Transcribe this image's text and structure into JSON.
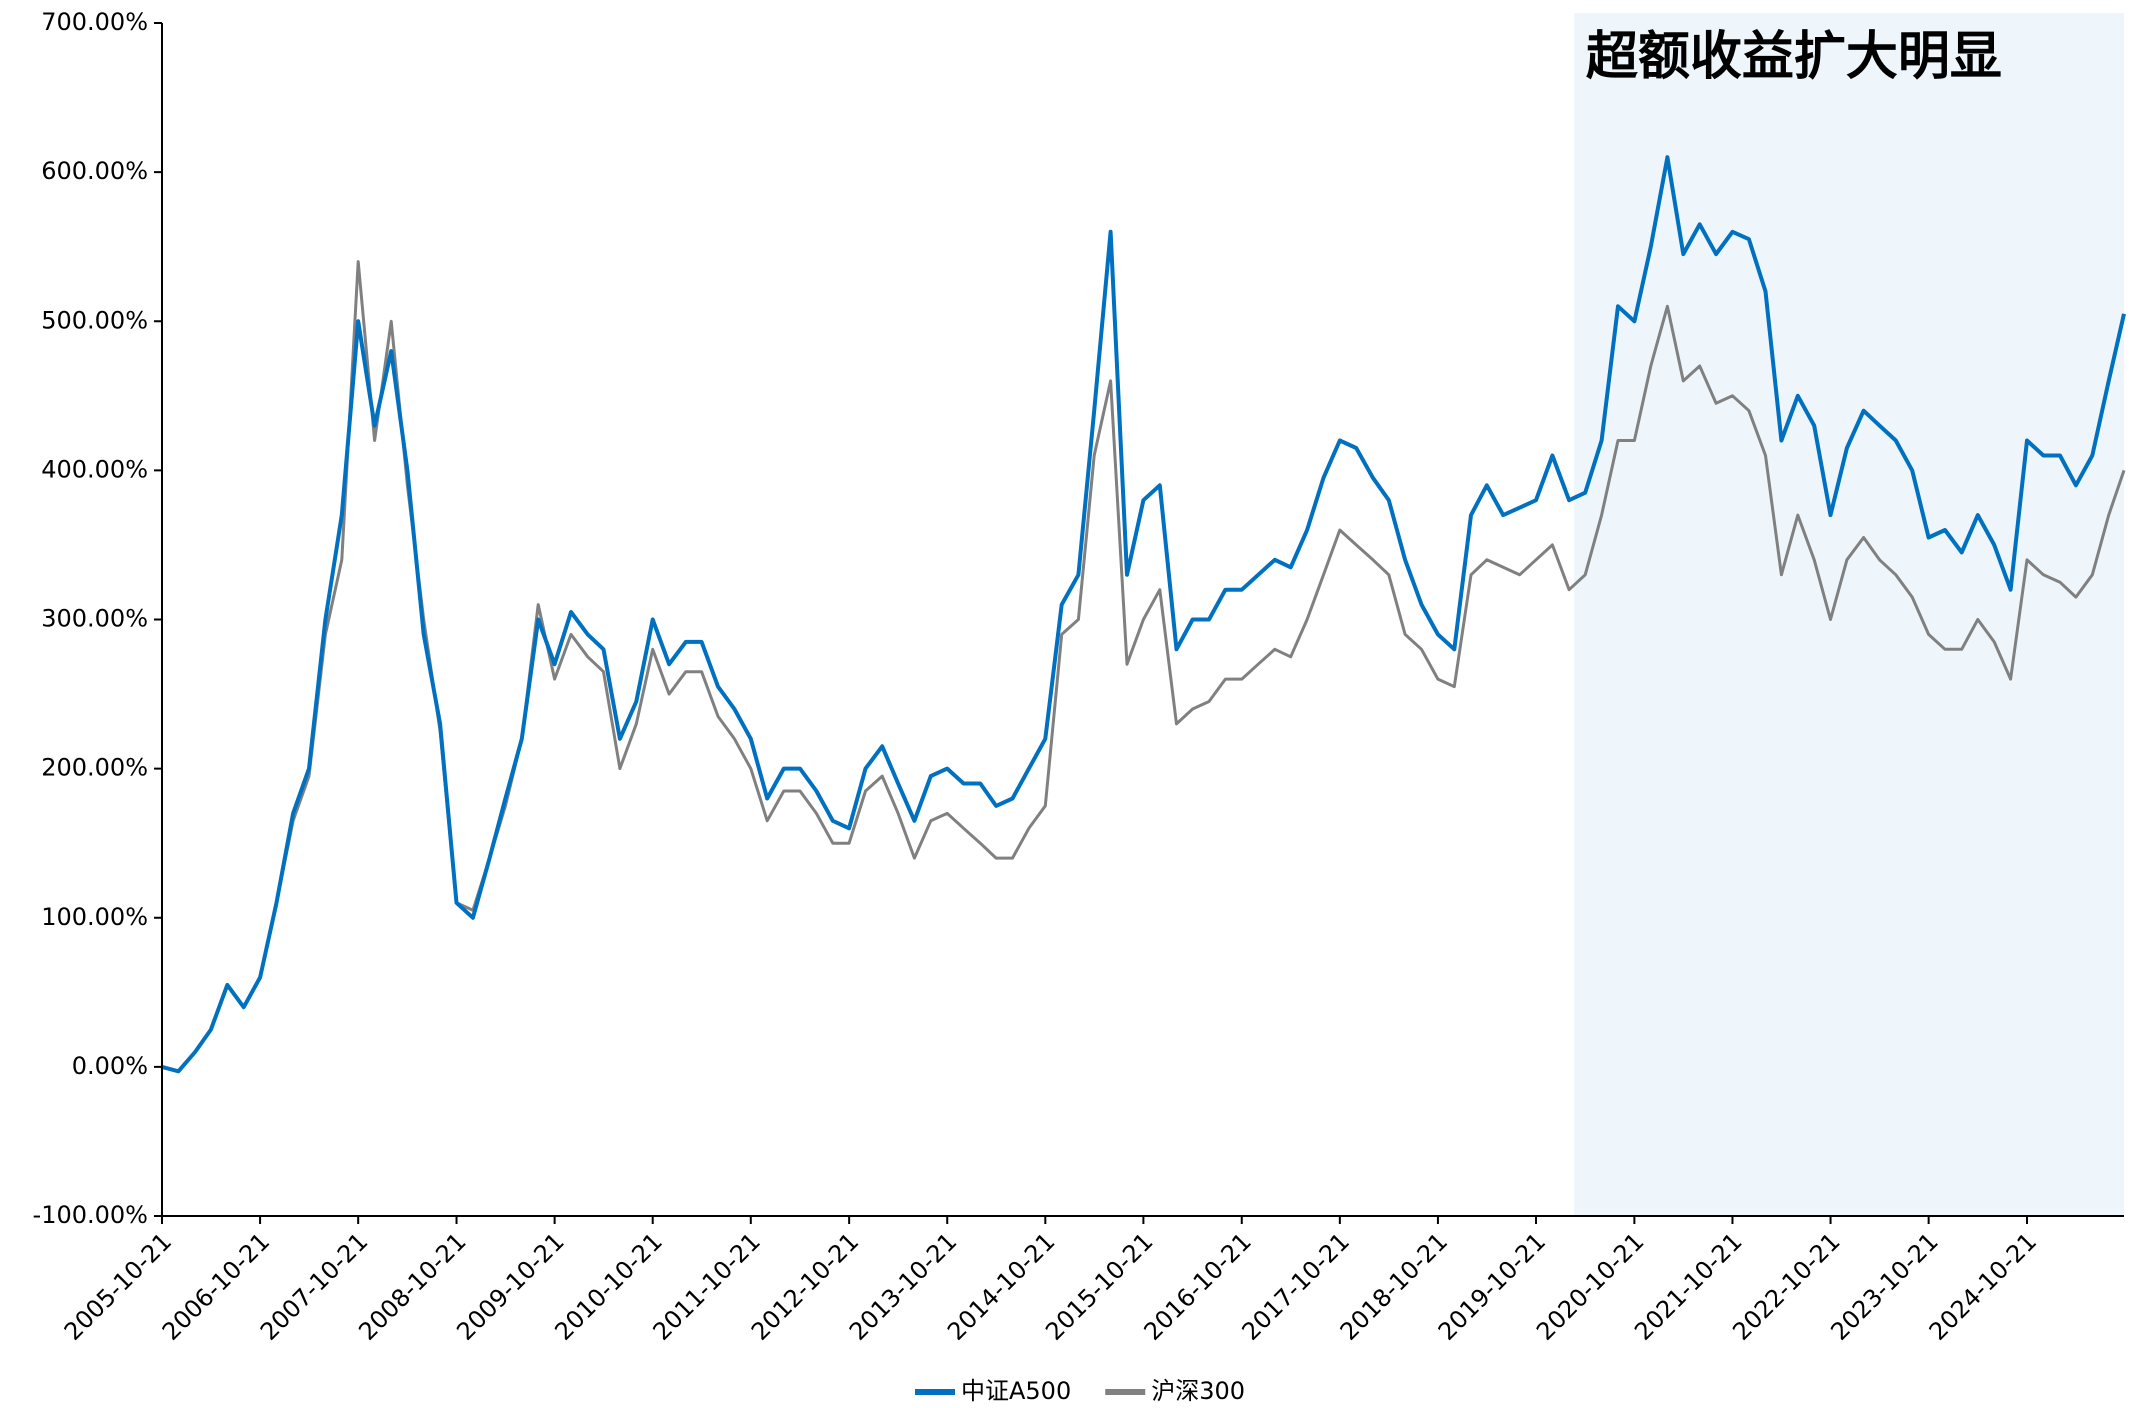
{
  "chart_data": {
    "type": "line",
    "annotation": "超额收益扩大明显",
    "shade": [
      "2020-03-10",
      "2025-10-17"
    ],
    "shade_color": "#eef6fb",
    "x": [
      "2005-10-21",
      "2005-12-21",
      "2006-02-21",
      "2006-04-21",
      "2006-06-21",
      "2006-08-21",
      "2006-10-21",
      "2006-12-21",
      "2007-02-21",
      "2007-04-21",
      "2007-06-21",
      "2007-08-21",
      "2007-10-21",
      "2007-12-21",
      "2008-02-21",
      "2008-04-21",
      "2008-06-21",
      "2008-08-21",
      "2008-10-21",
      "2008-12-21",
      "2009-02-21",
      "2009-04-21",
      "2009-06-21",
      "2009-08-21",
      "2009-10-21",
      "2009-12-21",
      "2010-02-21",
      "2010-04-21",
      "2010-06-21",
      "2010-08-21",
      "2010-10-21",
      "2010-12-21",
      "2011-02-21",
      "2011-04-21",
      "2011-06-21",
      "2011-08-21",
      "2011-10-21",
      "2011-12-21",
      "2012-02-21",
      "2012-04-21",
      "2012-06-21",
      "2012-08-21",
      "2012-10-21",
      "2012-12-21",
      "2013-02-21",
      "2013-04-21",
      "2013-06-21",
      "2013-08-21",
      "2013-10-21",
      "2013-12-21",
      "2014-02-21",
      "2014-04-21",
      "2014-06-21",
      "2014-08-21",
      "2014-10-21",
      "2014-12-21",
      "2015-02-21",
      "2015-04-21",
      "2015-06-21",
      "2015-08-21",
      "2015-10-21",
      "2015-12-21",
      "2016-02-21",
      "2016-04-21",
      "2016-06-21",
      "2016-08-21",
      "2016-10-21",
      "2016-12-21",
      "2017-02-21",
      "2017-04-21",
      "2017-06-21",
      "2017-08-21",
      "2017-10-21",
      "2017-12-21",
      "2018-02-21",
      "2018-04-21",
      "2018-06-21",
      "2018-08-21",
      "2018-10-21",
      "2018-12-21",
      "2019-02-21",
      "2019-04-21",
      "2019-06-21",
      "2019-08-21",
      "2019-10-21",
      "2019-12-21",
      "2020-02-21",
      "2020-04-21",
      "2020-06-21",
      "2020-08-21",
      "2020-10-21",
      "2020-12-21",
      "2021-02-21",
      "2021-04-21",
      "2021-06-21",
      "2021-08-21",
      "2021-10-21",
      "2021-12-21",
      "2022-02-21",
      "2022-04-21",
      "2022-06-21",
      "2022-08-21",
      "2022-10-21",
      "2022-12-21",
      "2023-02-21",
      "2023-04-21",
      "2023-06-21",
      "2023-08-21",
      "2023-10-21",
      "2023-12-21",
      "2024-02-21",
      "2024-04-21",
      "2024-06-21",
      "2024-08-21",
      "2024-10-21",
      "2024-12-21",
      "2025-02-21",
      "2025-04-21",
      "2025-06-21",
      "2025-08-21",
      "2025-10-17"
    ],
    "series": [
      {
        "name": "中证A500",
        "color": "#0070c0",
        "values": [
          0,
          -3,
          10,
          25,
          55,
          40,
          60,
          110,
          170,
          200,
          300,
          370,
          500,
          430,
          480,
          400,
          290,
          230,
          110,
          100,
          140,
          180,
          220,
          300,
          270,
          305,
          290,
          280,
          220,
          245,
          300,
          270,
          285,
          285,
          255,
          240,
          220,
          180,
          200,
          200,
          185,
          165,
          160,
          200,
          215,
          190,
          165,
          195,
          200,
          190,
          190,
          175,
          180,
          200,
          220,
          310,
          330,
          440,
          560,
          330,
          380,
          390,
          280,
          300,
          300,
          320,
          320,
          330,
          340,
          335,
          360,
          395,
          420,
          415,
          395,
          380,
          340,
          310,
          290,
          280,
          370,
          390,
          370,
          375,
          380,
          410,
          380,
          385,
          420,
          510,
          500,
          550,
          610,
          545,
          565,
          545,
          560,
          555,
          520,
          420,
          450,
          430,
          370,
          415,
          440,
          430,
          420,
          400,
          355,
          360,
          345,
          370,
          350,
          320,
          420,
          410,
          410,
          390,
          410,
          460,
          505
        ]
      },
      {
        "name": "沪深300",
        "color": "#808080",
        "values": [
          0,
          -3,
          10,
          25,
          55,
          40,
          60,
          110,
          165,
          195,
          290,
          340,
          540,
          420,
          500,
          390,
          300,
          225,
          110,
          105,
          140,
          175,
          220,
          310,
          260,
          290,
          275,
          265,
          200,
          230,
          280,
          250,
          265,
          265,
          235,
          220,
          200,
          165,
          185,
          185,
          170,
          150,
          150,
          185,
          195,
          170,
          140,
          165,
          170,
          160,
          150,
          140,
          140,
          160,
          175,
          290,
          300,
          410,
          460,
          270,
          300,
          320,
          230,
          240,
          245,
          260,
          260,
          270,
          280,
          275,
          300,
          330,
          360,
          350,
          340,
          330,
          290,
          280,
          260,
          255,
          330,
          340,
          335,
          330,
          340,
          350,
          320,
          330,
          370,
          420,
          420,
          470,
          510,
          460,
          470,
          445,
          450,
          440,
          410,
          330,
          370,
          340,
          300,
          340,
          355,
          340,
          330,
          315,
          290,
          280,
          280,
          300,
          285,
          260,
          340,
          330,
          325,
          315,
          330,
          370,
          400
        ]
      }
    ],
    "xlim": [
      "2005-10-21",
      "2025-10-17"
    ],
    "xticks": [
      "2005-10-21",
      "2006-10-21",
      "2007-10-21",
      "2008-10-21",
      "2009-10-21",
      "2010-10-21",
      "2011-10-21",
      "2012-10-21",
      "2013-10-21",
      "2014-10-21",
      "2015-10-21",
      "2016-10-21",
      "2017-10-21",
      "2018-10-21",
      "2019-10-21",
      "2020-10-21",
      "2021-10-21",
      "2022-10-21",
      "2023-10-21",
      "2024-10-21"
    ],
    "ylim": [
      -100,
      700
    ],
    "yticks": [
      {
        "value": -100,
        "label": "-100.00%"
      },
      {
        "value": 0,
        "label": "0.00%"
      },
      {
        "value": 100,
        "label": "100.00%"
      },
      {
        "value": 200,
        "label": "200.00%"
      },
      {
        "value": 300,
        "label": "300.00%"
      },
      {
        "value": 400,
        "label": "400.00%"
      },
      {
        "value": 500,
        "label": "500.00%"
      },
      {
        "value": 600,
        "label": "600.00%"
      },
      {
        "value": 700,
        "label": "700.00%"
      }
    ],
    "legend": "bottom"
  }
}
